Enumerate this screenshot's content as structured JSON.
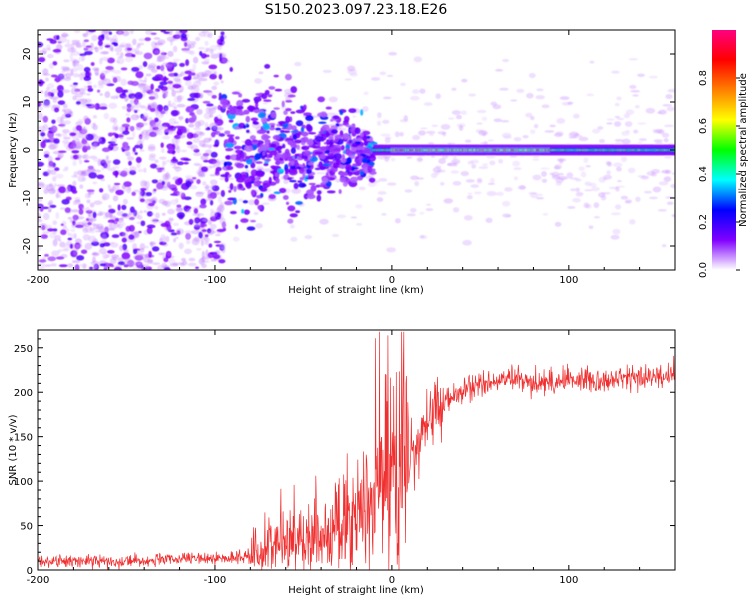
{
  "figure_title": "S150.2023.097.23.18.E26",
  "chart_data": [
    {
      "type": "heatmap",
      "title": "S150.2023.097.23.18.E26",
      "xlabel": "Height of straight line (km)",
      "ylabel": "Frequency (Hz)",
      "xlim": [
        -200,
        160
      ],
      "ylim": [
        -25,
        25
      ],
      "xticks": [
        -200,
        -100,
        0,
        100
      ],
      "yticks": [
        -20,
        -10,
        0,
        10,
        20
      ],
      "colorbar": {
        "label": "Normalized spectral amplitude",
        "range": [
          0,
          1
        ],
        "ticks": [
          "0.0",
          "0.2",
          "0.4",
          "0.6",
          "0.8"
        ],
        "tick_values": [
          0,
          0.2,
          0.4,
          0.6,
          0.8
        ],
        "colormap": [
          "#ffffff",
          "#8000ff",
          "#0000ff",
          "#00ffff",
          "#00ff00",
          "#ffff00",
          "#ff8000",
          "#ff0000",
          "#ff0080"
        ]
      },
      "description_features": {
        "noise_region_x": [
          -200,
          -95
        ],
        "transition_region_x": [
          -95,
          -10
        ],
        "signal_line_x": [
          -10,
          160
        ],
        "signal_frequency_hz": 0,
        "peak_amplitude_region_x": [
          0,
          90
        ]
      }
    },
    {
      "type": "line",
      "xlabel": "Height of straight line (km)",
      "ylabel": "SNR (10 * v/v)",
      "xlim": [
        -200,
        160
      ],
      "ylim": [
        0,
        270
      ],
      "xticks": [
        -200,
        -100,
        0,
        100
      ],
      "yticks": [
        0,
        50,
        100,
        150,
        200,
        250
      ],
      "series": [
        {
          "name": "SNR",
          "color": "#f03030",
          "x": [
            -200,
            -150,
            -120,
            -100,
            -80,
            -70,
            -60,
            -50,
            -40,
            -30,
            -20,
            -10,
            -5,
            0,
            5,
            10,
            15,
            20,
            25,
            30,
            40,
            50,
            60,
            70,
            80,
            90,
            100,
            110,
            120,
            130,
            140,
            150,
            160
          ],
          "y": [
            10,
            10,
            12,
            13,
            15,
            25,
            30,
            35,
            40,
            45,
            60,
            80,
            100,
            110,
            120,
            125,
            145,
            165,
            180,
            190,
            200,
            210,
            212,
            215,
            210,
            212,
            215,
            215,
            213,
            215,
            217,
            218,
            220
          ]
        }
      ]
    }
  ]
}
